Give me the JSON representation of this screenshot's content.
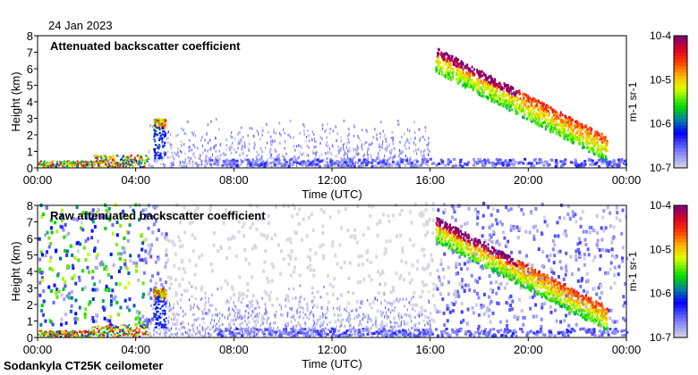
{
  "date": "24 Jan 2023",
  "footer": "Sodankyla CT25K ceilometer",
  "chart_data": [
    {
      "type": "heatmap",
      "title": "Attenuated backscatter coefficient",
      "xlabel": "Time (UTC)",
      "ylabel": "Height (km)",
      "xlim": [
        0,
        24
      ],
      "ylim": [
        0,
        8
      ],
      "xticks": [
        "00:00",
        "04:00",
        "08:00",
        "12:00",
        "16:00",
        "20:00",
        "00:00"
      ],
      "yticks": [
        "0",
        "1",
        "2",
        "3",
        "4",
        "5",
        "6",
        "7",
        "8"
      ],
      "colorbar": {
        "label": "m-1 sr-1",
        "ticks": [
          "10-7",
          "10-6",
          "10-5",
          "10-4"
        ],
        "range_log10": [
          -7,
          -4
        ]
      },
      "features": [
        {
          "name": "low cloud",
          "t": [
            0,
            4.5
          ],
          "h": [
            0.0,
            0.5
          ],
          "log10": -5.0
        },
        {
          "name": "mid cloud",
          "t": [
            4.7,
            5.2
          ],
          "h": [
            2.4,
            2.9
          ],
          "log10": -5.0
        },
        {
          "name": "noise/precip clutter",
          "t": [
            4.5,
            16
          ],
          "h": [
            0,
            2.3
          ],
          "log10": -6.9
        },
        {
          "name": "boundary layer",
          "t": [
            7,
            24
          ],
          "h": [
            0,
            0.4
          ],
          "log10": -6.6
        },
        {
          "name": "descending cloud",
          "t": [
            16.2,
            23.2
          ],
          "h_top": [
            7.2,
            1.8
          ],
          "thickness": 1.5,
          "log10": -5.3
        }
      ]
    },
    {
      "type": "heatmap",
      "title": "Raw attenuated backscatter coefficient",
      "xlabel": "Time (UTC)",
      "ylabel": "Height (km)",
      "xlim": [
        0,
        24
      ],
      "ylim": [
        0,
        8
      ],
      "xticks": [
        "00:00",
        "04:00",
        "08:00",
        "12:00",
        "16:00",
        "20:00",
        "00:00"
      ],
      "yticks": [
        "0",
        "1",
        "2",
        "3",
        "4",
        "5",
        "6",
        "7",
        "8"
      ],
      "colorbar": {
        "label": "m-1 sr-1",
        "ticks": [
          "10-7",
          "10-6",
          "10-5",
          "10-4"
        ],
        "range_log10": [
          -7,
          -4
        ]
      }
    }
  ]
}
